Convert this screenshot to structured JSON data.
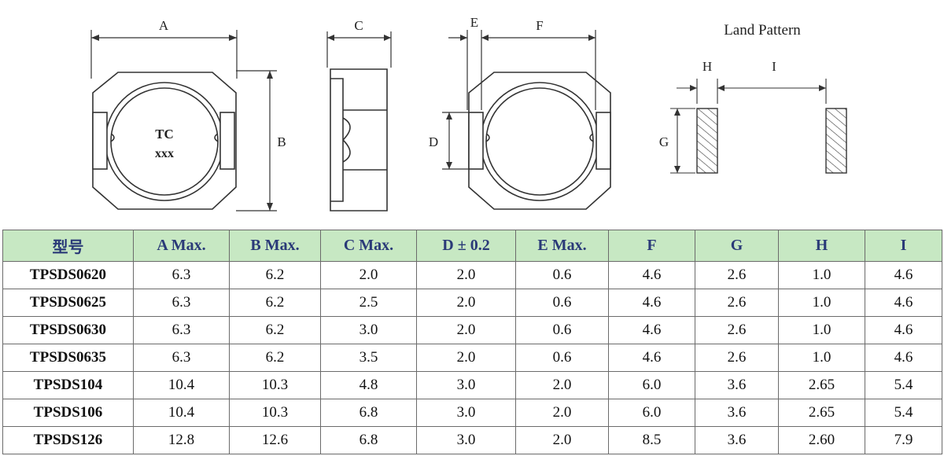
{
  "drawing": {
    "labels": {
      "a": "A",
      "b": "B",
      "c": "C",
      "d": "D",
      "e": "E",
      "f": "F",
      "g": "G",
      "h": "H",
      "i": "I",
      "marking_line1": "TC",
      "marking_line2": "xxx",
      "land_pattern": "Land Pattern"
    }
  },
  "table": {
    "headers": [
      "型号",
      "A Max.",
      "B Max.",
      "C Max.",
      "D ± 0.2",
      "E Max.",
      "F",
      "G",
      "H",
      "I"
    ],
    "rows": [
      [
        "TPSDS0620",
        "6.3",
        "6.2",
        "2.0",
        "2.0",
        "0.6",
        "4.6",
        "2.6",
        "1.0",
        "4.6"
      ],
      [
        "TPSDS0625",
        "6.3",
        "6.2",
        "2.5",
        "2.0",
        "0.6",
        "4.6",
        "2.6",
        "1.0",
        "4.6"
      ],
      [
        "TPSDS0630",
        "6.3",
        "6.2",
        "3.0",
        "2.0",
        "0.6",
        "4.6",
        "2.6",
        "1.0",
        "4.6"
      ],
      [
        "TPSDS0635",
        "6.3",
        "6.2",
        "3.5",
        "2.0",
        "0.6",
        "4.6",
        "2.6",
        "1.0",
        "4.6"
      ],
      [
        "TPSDS104",
        "10.4",
        "10.3",
        "4.8",
        "3.0",
        "2.0",
        "6.0",
        "3.6",
        "2.65",
        "5.4"
      ],
      [
        "TPSDS106",
        "10.4",
        "10.3",
        "6.8",
        "3.0",
        "2.0",
        "6.0",
        "3.6",
        "2.65",
        "5.4"
      ],
      [
        "TPSDS126",
        "12.8",
        "12.6",
        "6.8",
        "3.0",
        "2.0",
        "8.5",
        "3.6",
        "2.60",
        "7.9"
      ]
    ]
  }
}
